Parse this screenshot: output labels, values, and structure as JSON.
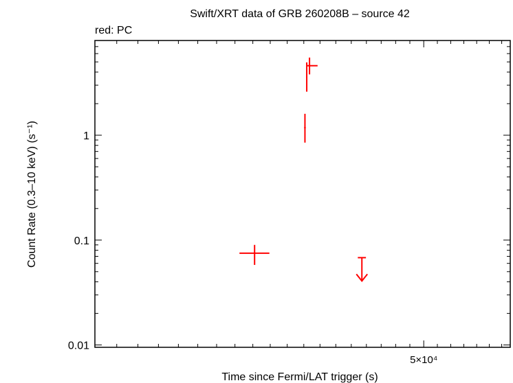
{
  "chart_data": {
    "type": "scatter",
    "title": "Swift/XRT data of GRB 260208B – source 42",
    "subtitle": "red: PC",
    "xlabel": "Time since Fermi/LAT trigger (s)",
    "ylabel": "Count Rate (0.3–10 keV) (s⁻¹)",
    "xscale": "log",
    "yscale": "log",
    "xlim": [
      31000,
      56700
    ],
    "ylim": [
      0.0095,
      8.0
    ],
    "xticks": [
      {
        "value": 50000,
        "label": "5×10⁴"
      }
    ],
    "yticks": [
      {
        "value": 0.01,
        "label": "0.01"
      },
      {
        "value": 0.1,
        "label": "0.1"
      },
      {
        "value": 1,
        "label": "1"
      }
    ],
    "grid": false,
    "series_color": "#ff0000",
    "points": [
      {
        "x": 39100,
        "xerr": [
          850,
          850
        ],
        "y": 0.075,
        "yerr_lo": 0.017,
        "yerr_hi": 0.015
      },
      {
        "x": 42070,
        "xerr": [
          50,
          50
        ],
        "y": 1.18,
        "yerr_lo": 0.33,
        "yerr_hi": 0.42
      },
      {
        "x": 42180,
        "xerr": [
          30,
          30
        ],
        "y": 3.6,
        "yerr_lo": 1.0,
        "yerr_hi": 1.35
      },
      {
        "x": 42350,
        "xerr": [
          140,
          500
        ],
        "y": 4.6,
        "yerr_lo": 0.8,
        "yerr_hi": 0.9
      }
    ],
    "upper_limits": [
      {
        "x": 45700,
        "xerr": [
          270,
          270
        ],
        "y": 0.068
      }
    ]
  }
}
